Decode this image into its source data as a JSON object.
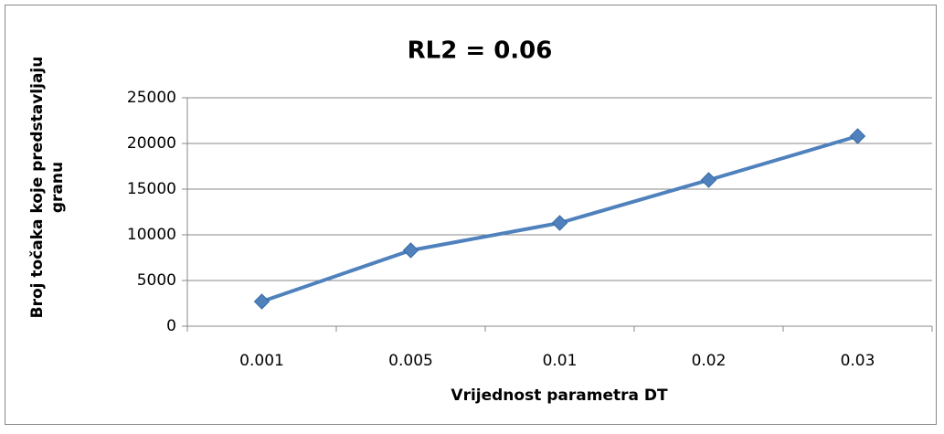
{
  "chart_data": {
    "type": "line",
    "title": "RL2 = 0.06",
    "x_label": "Vrijednost parametra DT",
    "y_label": "Broj točaka koje predstavljaju granu",
    "categories": [
      "0.001",
      "0.005",
      "0.01",
      "0.02",
      "0.03"
    ],
    "series": [
      {
        "name": "RL2 = 0.06",
        "color": "#4f81bd",
        "values": [
          2700,
          8300,
          11300,
          16000,
          20800
        ]
      }
    ],
    "ylim": [
      0,
      25000
    ],
    "yticks": [
      0,
      5000,
      10000,
      15000,
      20000,
      25000
    ],
    "grid": true
  }
}
